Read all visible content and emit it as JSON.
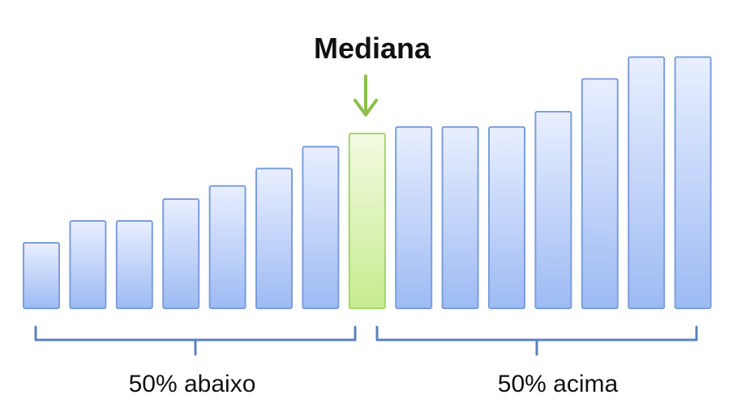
{
  "diagram": {
    "title": "Mediana",
    "left_label": "50% abaixo",
    "right_label": "50% acima",
    "arrow_icon": "down-arrow-icon",
    "colors": {
      "bar_fill_top": "#e9efff",
      "bar_fill_bottom": "#9dbaf3",
      "bar_stroke": "#7c9edc",
      "median_fill_top": "#f3fbe2",
      "median_fill_bottom": "#c8eb8f",
      "median_stroke": "#a7d46a",
      "arrow": "#8cbf4c",
      "bracket": "#5b82bd"
    }
  },
  "chart_data": {
    "type": "bar",
    "values": [
      3,
      4,
      4,
      5,
      5.6,
      6.4,
      7.4,
      8,
      8.3,
      8.3,
      8.3,
      9,
      10.5,
      11.5,
      11.5
    ],
    "median_index": 7,
    "ylim": [
      0,
      12
    ]
  }
}
